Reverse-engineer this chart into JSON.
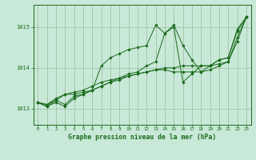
{
  "title": "Graphe pression niveau de la mer (hPa)",
  "background_color": "#c8e8d8",
  "grid_color": "#99bb99",
  "line_color": "#1a6b1a",
  "marker_color": "#1a6b1a",
  "xlim": [
    -0.5,
    23.5
  ],
  "ylim": [
    1012.6,
    1015.55
  ],
  "yticks": [
    1013,
    1014,
    1015
  ],
  "xticks": [
    0,
    1,
    2,
    3,
    4,
    5,
    6,
    7,
    8,
    9,
    10,
    11,
    12,
    13,
    14,
    15,
    16,
    17,
    18,
    19,
    20,
    21,
    22,
    23
  ],
  "series": [
    [
      1013.15,
      1013.05,
      1013.15,
      1013.05,
      1013.25,
      1013.35,
      1013.45,
      1013.55,
      1013.65,
      1013.75,
      1013.85,
      1013.9,
      1014.05,
      1014.15,
      1014.85,
      1015.0,
      1013.65,
      1013.85,
      1014.05,
      1014.05,
      1014.2,
      1014.25,
      1014.95,
      1015.25
    ],
    [
      1013.15,
      1013.05,
      1013.2,
      1013.1,
      1013.3,
      1013.35,
      1013.45,
      1014.05,
      1014.25,
      1014.35,
      1014.45,
      1014.5,
      1014.55,
      1015.05,
      1014.85,
      1015.05,
      1014.55,
      1014.2,
      1013.9,
      1014.05,
      1014.2,
      1014.25,
      1014.9,
      1015.25
    ],
    [
      1013.15,
      1013.1,
      1013.2,
      1013.35,
      1013.35,
      1013.4,
      1013.45,
      1013.55,
      1013.65,
      1013.7,
      1013.8,
      1013.85,
      1013.9,
      1013.95,
      1013.95,
      1013.9,
      1013.9,
      1013.9,
      1013.9,
      1013.95,
      1014.05,
      1014.15,
      1014.75,
      1015.25
    ],
    [
      1013.15,
      1013.1,
      1013.25,
      1013.35,
      1013.4,
      1013.45,
      1013.55,
      1013.65,
      1013.7,
      1013.75,
      1013.8,
      1013.85,
      1013.9,
      1013.95,
      1014.0,
      1014.0,
      1014.05,
      1014.05,
      1014.05,
      1014.05,
      1014.1,
      1014.15,
      1014.65,
      1015.25
    ]
  ]
}
